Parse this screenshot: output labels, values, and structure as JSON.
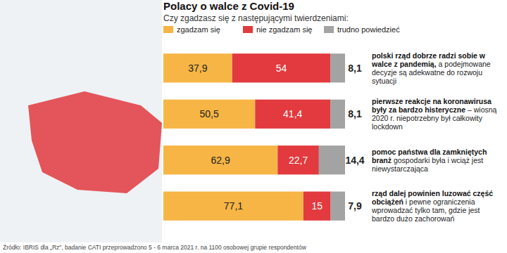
{
  "chart_data": {
    "type": "bar",
    "orientation": "horizontal",
    "stacked": true,
    "data_labels": true,
    "tick_labels": false,
    "legend": "top",
    "title": "Polacy o walce z Covid-19",
    "subtitle": "Czy zgadzasz się z następującymi twierdzeniami:",
    "categories": [
      "polski rząd dobrze radzi sobie w walce z pandemią,",
      "pierwsze reakcje na koronawirusa były za bardzo histeryczne",
      "pomoc państwa dla zamkniętych branż",
      "rząd dalej powinien luzować część obciążeń"
    ],
    "category_details": [
      "a podejmowane decyzje są adekwatne do rozwoju sytuacji",
      "– wiosną 2020 r. niepotrzebny był całkowity lockdown",
      "gospodarki była i wciąż jest niewystarczająca",
      "i pewne ograniczenia wprowadzać tylko tam, gdzie jest bardzo dużo zachorowań"
    ],
    "xlim": [
      0,
      100
    ],
    "series": [
      {
        "name": "zgadzam się",
        "color": "#f6b545",
        "values": [
          37.9,
          50.5,
          62.9,
          77.1
        ],
        "value_labels": [
          "37,9",
          "50,5",
          "62,9",
          "77,1"
        ]
      },
      {
        "name": "nie zgadzam się",
        "color": "#e23a3f",
        "values": [
          54,
          41.4,
          22.7,
          15
        ],
        "value_labels": [
          "54",
          "41,4",
          "22,7",
          "15"
        ]
      },
      {
        "name": "trudno powiedzieć",
        "color": "#a3a3a3",
        "values": [
          8.1,
          8.1,
          14.4,
          7.9
        ],
        "value_labels": [
          "8,1",
          "8,1",
          "14,4",
          "7,9"
        ]
      }
    ],
    "source": "Źródło: IBRIS dla „Rz\", badanie CATI przeprowadzono 5 - 6 marca 2021 r. na 1100 osobowej grupie respondentów"
  }
}
